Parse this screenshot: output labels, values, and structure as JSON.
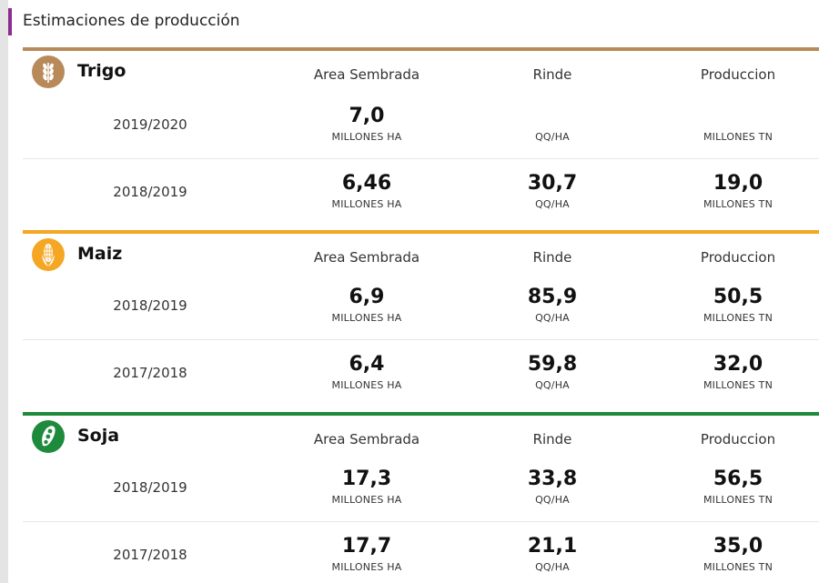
{
  "header": {
    "title": "Estimaciones de producción"
  },
  "columns": {
    "area": "Area Sembrada",
    "rinde": "Rinde",
    "produccion": "Produccion"
  },
  "units": {
    "area": "MILLONES HA",
    "rinde": "QQ/HA",
    "produccion": "MILLONES TN"
  },
  "crops": [
    {
      "name": "Trigo",
      "icon": "wheat-icon",
      "color": "#b88a5a",
      "rows": [
        {
          "season": "2019/2020",
          "area": "7,0",
          "rinde": "",
          "produccion": ""
        },
        {
          "season": "2018/2019",
          "area": "6,46",
          "rinde": "30,7",
          "produccion": "19,0"
        }
      ]
    },
    {
      "name": "Maiz",
      "icon": "corn-icon",
      "color": "#f5a623",
      "rows": [
        {
          "season": "2018/2019",
          "area": "6,9",
          "rinde": "85,9",
          "produccion": "50,5"
        },
        {
          "season": "2017/2018",
          "area": "6,4",
          "rinde": "59,8",
          "produccion": "32,0"
        }
      ]
    },
    {
      "name": "Soja",
      "icon": "soy-pod-icon",
      "color": "#1e8a3c",
      "rows": [
        {
          "season": "2018/2019",
          "area": "17,3",
          "rinde": "33,8",
          "produccion": "56,5"
        },
        {
          "season": "2017/2018",
          "area": "17,7",
          "rinde": "21,1",
          "produccion": "35,0"
        }
      ]
    }
  ]
}
